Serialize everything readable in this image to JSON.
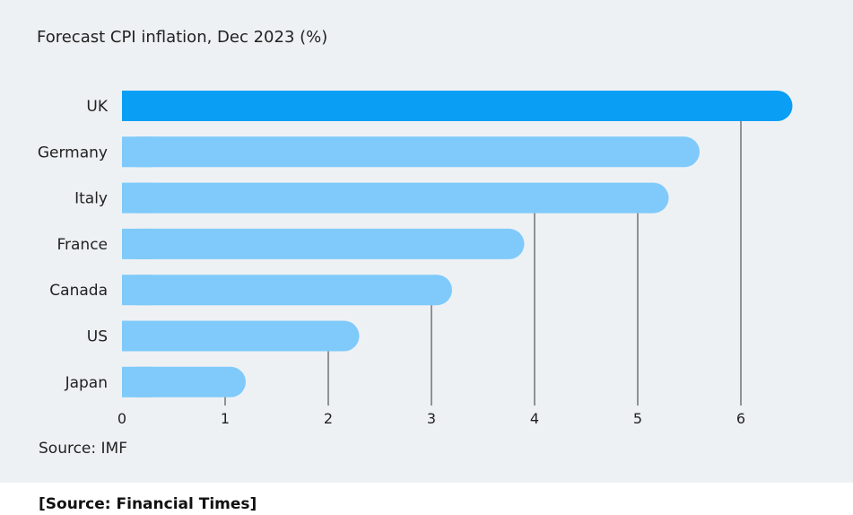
{
  "chart_data": {
    "type": "bar",
    "orientation": "horizontal",
    "title": "Forecast CPI inflation, Dec 2023 (%)",
    "categories": [
      "UK",
      "Germany",
      "Italy",
      "France",
      "Canada",
      "US",
      "Japan"
    ],
    "values": [
      6.5,
      5.6,
      5.3,
      3.9,
      3.2,
      2.3,
      1.2
    ],
    "highlight": "UK",
    "xticks": [
      0,
      1,
      2,
      3,
      4,
      5,
      6
    ],
    "xlim": [
      0,
      6.5
    ],
    "grid": true,
    "colors": {
      "highlight": "#0a9ef5",
      "default": "#7fcafb",
      "grid": "#333333",
      "background": "#eef1f3"
    }
  },
  "source_note": "Source: IMF",
  "credit": "[Source: Financial Times]"
}
